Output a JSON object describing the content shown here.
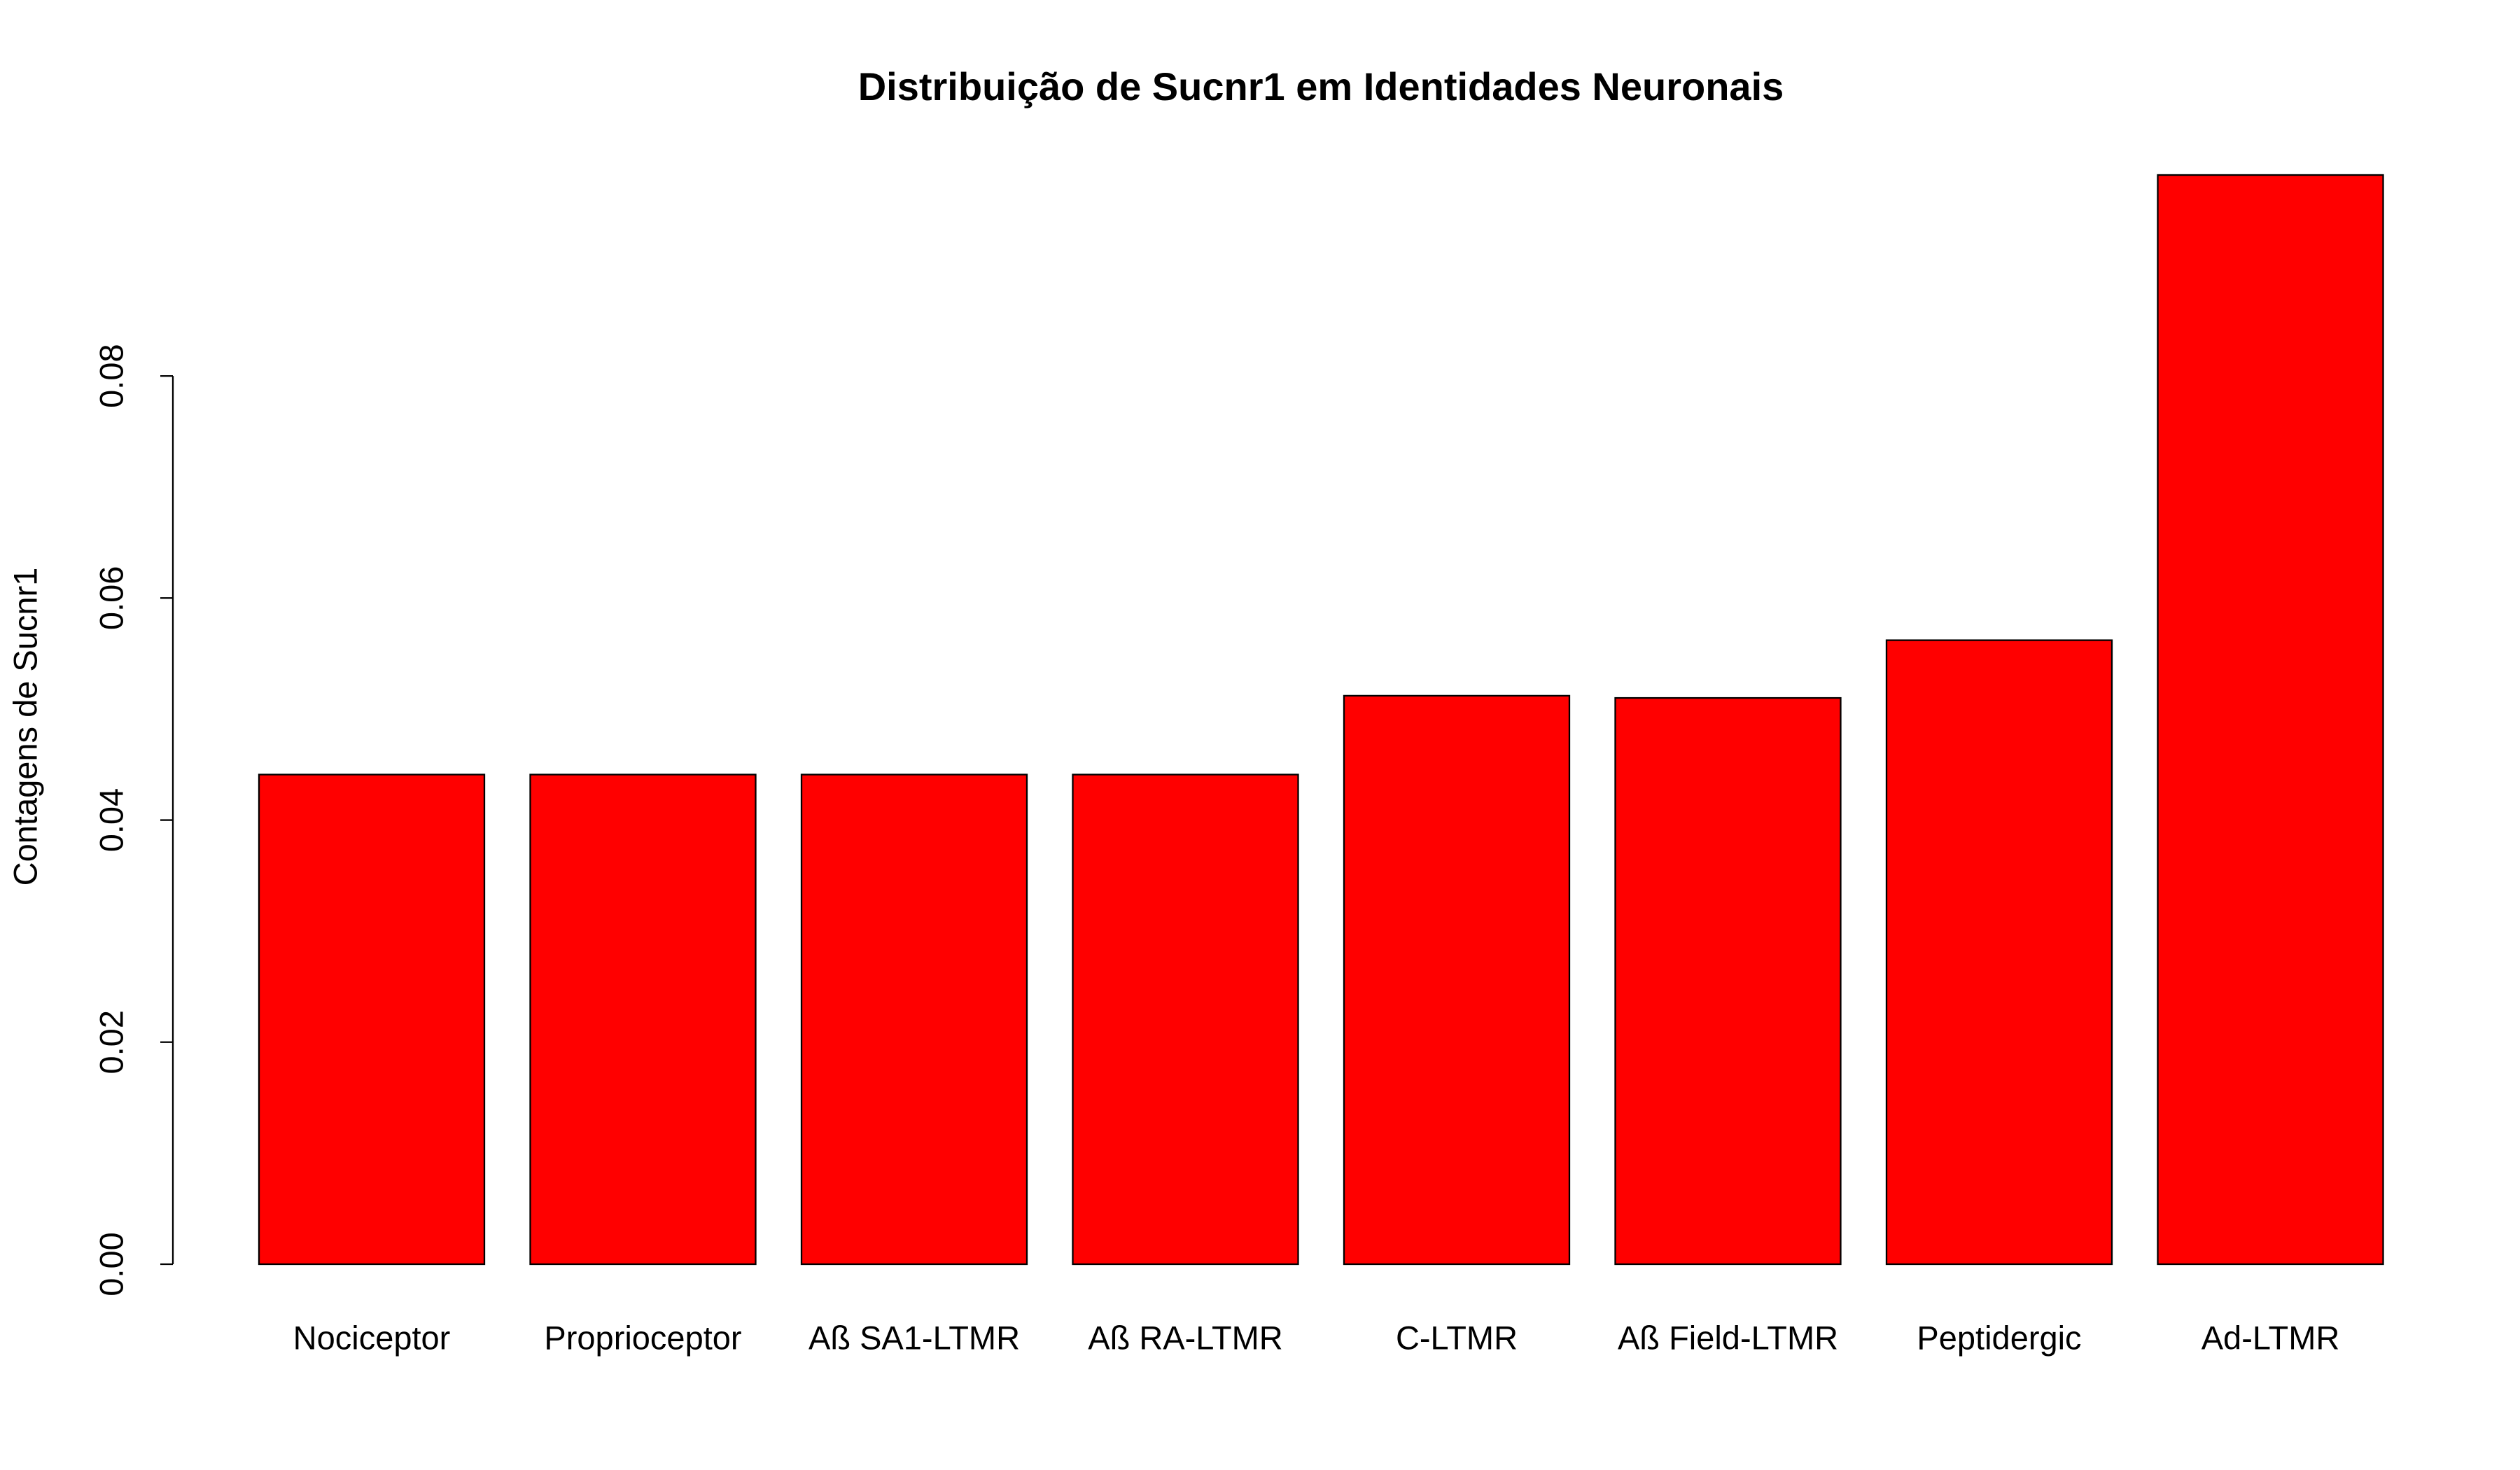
{
  "chart_data": {
    "type": "bar",
    "title": "Distribuição de Sucnr1 em Identidades Neuronais",
    "ylabel": "Contagens de Sucnr1",
    "categories": [
      "Nociceptor",
      "Proprioceptor",
      "Aß SA1-LTMR",
      "Aß RA-LTMR",
      "C-LTMR",
      "Aß Field-LTMR",
      "Peptidergic",
      "Ad-LTMR"
    ],
    "values": [
      0.0441,
      0.0441,
      0.0441,
      0.0441,
      0.0512,
      0.051,
      0.0562,
      0.0981
    ],
    "color": "#ff0000",
    "ylim": [
      0,
      0.0981
    ],
    "yticks": [
      {
        "value": 0,
        "label": "0.00"
      },
      {
        "value": 0.02,
        "label": "0.02"
      },
      {
        "value": 0.04,
        "label": "0.04"
      },
      {
        "value": 0.06,
        "label": "0.06"
      },
      {
        "value": 0.08,
        "label": "0.08"
      }
    ],
    "grid": false
  }
}
